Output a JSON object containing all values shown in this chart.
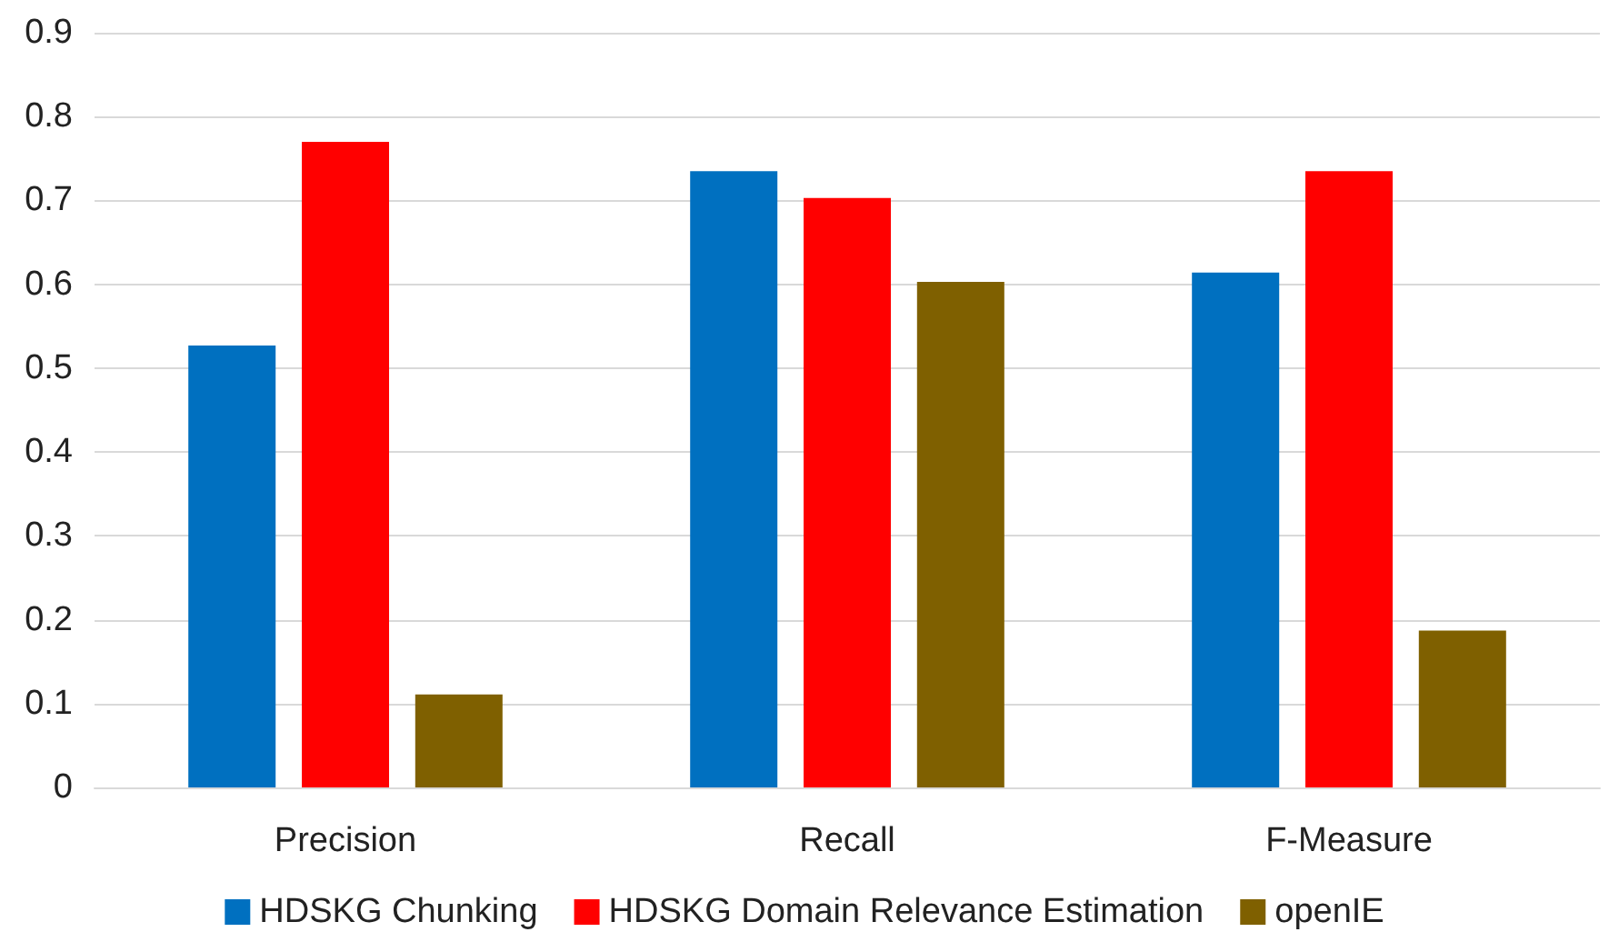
{
  "chart_data": {
    "type": "bar",
    "categories": [
      "Precision",
      "Recall",
      "F-Measure"
    ],
    "series": [
      {
        "name": "HDSKG Chunking",
        "color": "#0070c0",
        "values": [
          0.527,
          0.735,
          0.614
        ]
      },
      {
        "name": "HDSKG Domain Relevance Estimation",
        "color": "#ff0000",
        "values": [
          0.77,
          0.703,
          0.735
        ]
      },
      {
        "name": "openIE",
        "color": "#7f6000",
        "values": [
          0.111,
          0.603,
          0.187
        ]
      }
    ],
    "ylim": [
      0,
      0.9
    ],
    "yticks": [
      0,
      0.1,
      0.2,
      0.3,
      0.4,
      0.5,
      0.6,
      0.7,
      0.8,
      0.9
    ],
    "grid": "y",
    "legend": "bottom"
  }
}
